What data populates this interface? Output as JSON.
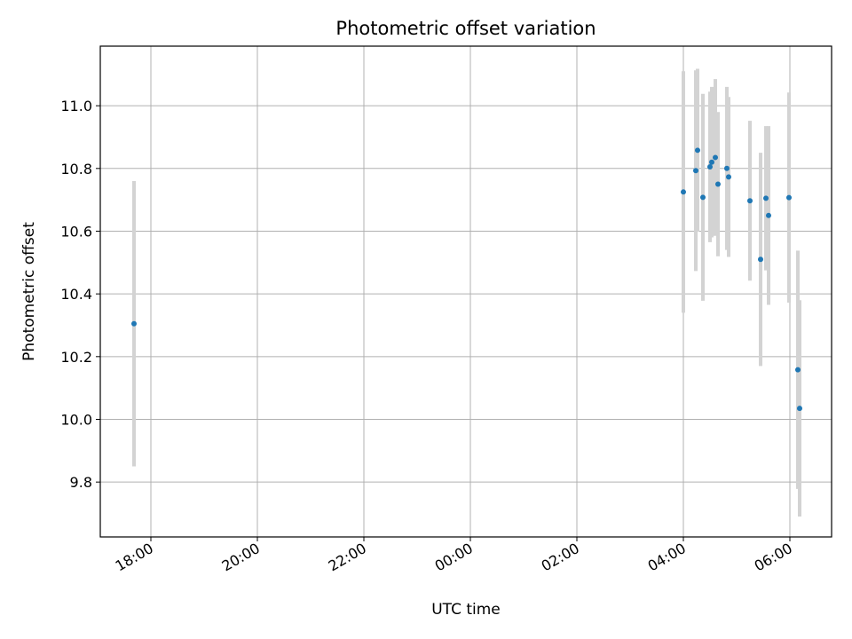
{
  "chart_data": {
    "type": "scatter",
    "title": "Photometric offset variation",
    "xlabel": "UTC time",
    "ylabel": "Photometric offset",
    "grid": true,
    "colors": {
      "points": "#1f77b4",
      "errorbars": "#d3d3d3",
      "grid": "#b0b0b0"
    },
    "x_tick_labels": [
      "18:00",
      "20:00",
      "22:00",
      "00:00",
      "02:00",
      "04:00",
      "06:00"
    ],
    "y_tick_labels": [
      "9.8",
      "10.0",
      "10.2",
      "10.4",
      "10.6",
      "10.8",
      "11.0"
    ],
    "y_ticks": [
      9.8,
      10.0,
      10.2,
      10.4,
      10.6,
      10.8,
      11.0
    ],
    "ylim": [
      9.625,
      11.19
    ],
    "xlim": [
      "17:03",
      "06:47"
    ],
    "points": [
      {
        "x": "17:41",
        "y": 10.305,
        "err": 0.455
      },
      {
        "x": "04:00",
        "y": 10.725,
        "err": 0.385
      },
      {
        "x": "04:14",
        "y": 10.793,
        "err": 0.32
      },
      {
        "x": "04:16",
        "y": 10.858,
        "err": 0.26
      },
      {
        "x": "04:22",
        "y": 10.708,
        "err": 0.33
      },
      {
        "x": "04:30",
        "y": 10.805,
        "err": 0.24
      },
      {
        "x": "04:32",
        "y": 10.82,
        "err": 0.24
      },
      {
        "x": "04:36",
        "y": 10.835,
        "err": 0.25
      },
      {
        "x": "04:39",
        "y": 10.75,
        "err": 0.23
      },
      {
        "x": "04:49",
        "y": 10.8,
        "err": 0.26
      },
      {
        "x": "04:51",
        "y": 10.773,
        "err": 0.255
      },
      {
        "x": "05:15",
        "y": 10.697,
        "err": 0.255
      },
      {
        "x": "05:27",
        "y": 10.51,
        "err": 0.34
      },
      {
        "x": "05:33",
        "y": 10.705,
        "err": 0.23
      },
      {
        "x": "05:36",
        "y": 10.65,
        "err": 0.285
      },
      {
        "x": "05:59",
        "y": 10.707,
        "err": 0.335
      },
      {
        "x": "06:09",
        "y": 10.158,
        "err": 0.38
      },
      {
        "x": "06:11",
        "y": 10.035,
        "err": 0.345
      }
    ]
  }
}
